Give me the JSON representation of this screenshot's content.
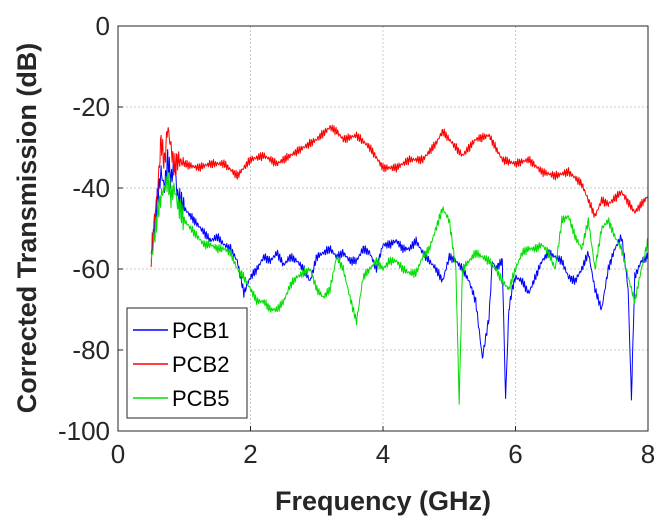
{
  "chart_data": {
    "type": "line",
    "title": "",
    "xlabel": "Frequency (GHz)",
    "ylabel": "Corrected Transmission (dB)",
    "xlim": [
      0,
      8
    ],
    "ylim": [
      -100,
      0
    ],
    "xticks": [
      "0",
      "2",
      "4",
      "6",
      "8"
    ],
    "yticks": [
      "0",
      "-20",
      "-40",
      "-60",
      "-80",
      "-100"
    ],
    "grid": true,
    "legend_position": "bottom-left",
    "series": [
      {
        "name": "PCB1",
        "color": "#0000ff",
        "x": [
          0.5,
          0.55,
          0.6,
          0.65,
          0.7,
          0.75,
          0.8,
          0.85,
          0.9,
          1.0,
          1.1,
          1.2,
          1.3,
          1.4,
          1.5,
          1.6,
          1.7,
          1.8,
          1.9,
          2.0,
          2.1,
          2.2,
          2.3,
          2.4,
          2.5,
          2.6,
          2.7,
          2.8,
          2.9,
          3.0,
          3.1,
          3.2,
          3.3,
          3.4,
          3.5,
          3.6,
          3.7,
          3.8,
          3.9,
          4.0,
          4.1,
          4.2,
          4.3,
          4.4,
          4.5,
          4.6,
          4.7,
          4.8,
          4.9,
          5.0,
          5.1,
          5.2,
          5.3,
          5.4,
          5.5,
          5.6,
          5.65,
          5.7,
          5.8,
          5.85,
          5.9,
          5.95,
          6.0,
          6.1,
          6.2,
          6.3,
          6.4,
          6.5,
          6.6,
          6.7,
          6.8,
          6.9,
          7.0,
          7.1,
          7.2,
          7.3,
          7.4,
          7.5,
          7.6,
          7.65,
          7.7,
          7.75,
          7.8,
          7.9,
          8.0
        ],
        "y": [
          -57,
          -50,
          -42,
          -36,
          -40,
          -33,
          -38,
          -34,
          -42,
          -45,
          -47,
          -49,
          -51,
          -53,
          -52,
          -54,
          -55,
          -58,
          -66,
          -62,
          -60,
          -57,
          -58,
          -56,
          -59,
          -57,
          -58,
          -60,
          -63,
          -57,
          -56,
          -55,
          -57,
          -56,
          -58,
          -58,
          -55,
          -56,
          -60,
          -54,
          -54,
          -53,
          -55,
          -55,
          -53,
          -56,
          -58,
          -60,
          -63,
          -57,
          -58,
          -60,
          -63,
          -68,
          -82,
          -72,
          -58,
          -60,
          -58,
          -92,
          -70,
          -65,
          -62,
          -63,
          -66,
          -62,
          -58,
          -56,
          -57,
          -58,
          -62,
          -63,
          -60,
          -56,
          -65,
          -70,
          -60,
          -55,
          -52,
          -58,
          -65,
          -92,
          -62,
          -58,
          -57
        ]
      },
      {
        "name": "PCB2",
        "color": "#ff0000",
        "x": [
          0.5,
          0.55,
          0.6,
          0.65,
          0.7,
          0.75,
          0.8,
          0.85,
          0.9,
          1.0,
          1.2,
          1.4,
          1.6,
          1.8,
          2.0,
          2.2,
          2.4,
          2.6,
          2.8,
          3.0,
          3.2,
          3.3,
          3.4,
          3.6,
          3.8,
          4.0,
          4.2,
          4.4,
          4.6,
          4.8,
          4.9,
          5.0,
          5.2,
          5.4,
          5.6,
          5.8,
          6.0,
          6.2,
          6.4,
          6.6,
          6.8,
          7.0,
          7.2,
          7.3,
          7.4,
          7.6,
          7.8,
          8.0
        ],
        "y": [
          -57,
          -48,
          -40,
          -28,
          -34,
          -25,
          -30,
          -35,
          -33,
          -34,
          -35,
          -34,
          -34,
          -37,
          -33,
          -32,
          -34,
          -32,
          -30,
          -28,
          -25,
          -26,
          -28,
          -27,
          -30,
          -35,
          -35,
          -33,
          -33,
          -29,
          -26,
          -28,
          -32,
          -28,
          -27,
          -33,
          -34,
          -33,
          -36,
          -37,
          -36,
          -39,
          -47,
          -43,
          -44,
          -41,
          -46,
          -42
        ]
      },
      {
        "name": "PCB5",
        "color": "#00dd00",
        "x": [
          0.5,
          0.55,
          0.6,
          0.65,
          0.7,
          0.75,
          0.8,
          0.85,
          0.9,
          1.0,
          1.1,
          1.2,
          1.3,
          1.4,
          1.5,
          1.6,
          1.7,
          1.8,
          1.9,
          2.0,
          2.1,
          2.2,
          2.3,
          2.4,
          2.5,
          2.6,
          2.7,
          2.8,
          2.9,
          3.0,
          3.1,
          3.2,
          3.3,
          3.4,
          3.5,
          3.6,
          3.7,
          3.8,
          3.9,
          4.0,
          4.1,
          4.2,
          4.3,
          4.4,
          4.5,
          4.6,
          4.7,
          4.8,
          4.9,
          5.0,
          5.1,
          5.15,
          5.2,
          5.3,
          5.4,
          5.5,
          5.6,
          5.7,
          5.8,
          5.9,
          6.0,
          6.1,
          6.2,
          6.3,
          6.4,
          6.5,
          6.6,
          6.7,
          6.8,
          6.9,
          7.0,
          7.1,
          7.2,
          7.3,
          7.4,
          7.5,
          7.6,
          7.7,
          7.8,
          7.9,
          8.0
        ],
        "y": [
          -58,
          -52,
          -46,
          -42,
          -40,
          -38,
          -42,
          -40,
          -44,
          -48,
          -50,
          -52,
          -54,
          -54,
          -55,
          -55,
          -56,
          -60,
          -62,
          -65,
          -68,
          -68,
          -70,
          -70,
          -68,
          -64,
          -62,
          -61,
          -60,
          -65,
          -67,
          -65,
          -57,
          -60,
          -67,
          -73,
          -62,
          -60,
          -58,
          -60,
          -58,
          -58,
          -60,
          -61,
          -61,
          -57,
          -55,
          -50,
          -45,
          -48,
          -60,
          -93,
          -60,
          -58,
          -56,
          -57,
          -58,
          -60,
          -63,
          -65,
          -60,
          -56,
          -55,
          -55,
          -54,
          -56,
          -60,
          -48,
          -47,
          -52,
          -55,
          -48,
          -60,
          -50,
          -48,
          -52,
          -55,
          -62,
          -68,
          -60,
          -53
        ]
      }
    ]
  }
}
